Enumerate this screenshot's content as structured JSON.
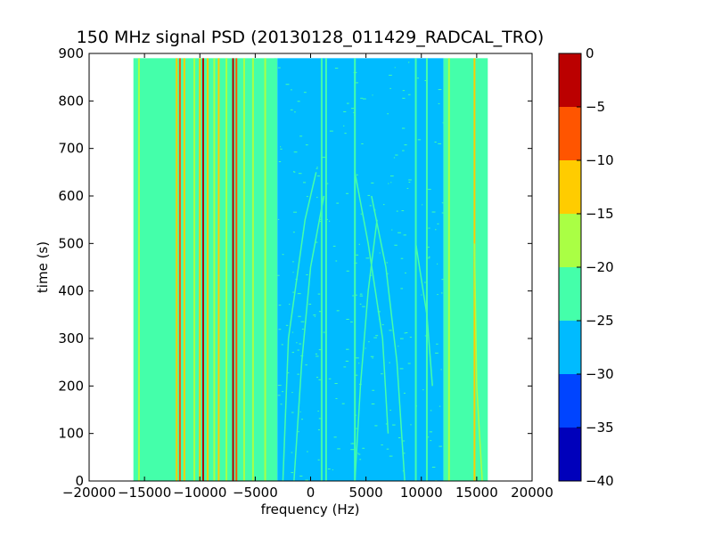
{
  "chart_data": {
    "type": "heatmap",
    "title": "150 MHz signal PSD (20130128_011429_RADCAL_TRO)",
    "xlabel": "frequency (Hz)",
    "ylabel": "time (s)",
    "xlim": [
      -20000,
      20000
    ],
    "ylim": [
      0,
      900
    ],
    "x_ticks": [
      -20000,
      -15000,
      -10000,
      -5000,
      0,
      5000,
      10000,
      15000,
      20000
    ],
    "y_ticks": [
      0,
      100,
      200,
      300,
      400,
      500,
      600,
      700,
      800,
      900
    ],
    "data_extent": {
      "x": [
        -16000,
        16000
      ],
      "y": [
        0,
        890
      ]
    },
    "colorbar": {
      "range": [
        -40,
        0
      ],
      "ticks": [
        0,
        -5,
        -10,
        -15,
        -20,
        -25,
        -30,
        -35,
        -40
      ],
      "levels": [
        {
          "from": -40,
          "to": -35,
          "color": "#0000bb"
        },
        {
          "from": -35,
          "to": -30,
          "color": "#0044ff"
        },
        {
          "from": -30,
          "to": -25,
          "color": "#00bbff"
        },
        {
          "from": -25,
          "to": -20,
          "color": "#44ffaa"
        },
        {
          "from": -20,
          "to": -15,
          "color": "#aaff44"
        },
        {
          "from": -15,
          "to": -10,
          "color": "#ffcc00"
        },
        {
          "from": -10,
          "to": -5,
          "color": "#ff5500"
        },
        {
          "from": -5,
          "to": 0,
          "color": "#bb0000"
        }
      ]
    },
    "regions": [
      {
        "x": [
          -16000,
          -3000
        ],
        "level": -22.5
      },
      {
        "x": [
          -3000,
          12000
        ],
        "level": -27.5
      },
      {
        "x": [
          12000,
          16000
        ],
        "level": -22.5
      }
    ],
    "vertical_lines": [
      {
        "x": -15500,
        "level": -17.5
      },
      {
        "x": -12100,
        "level": -12.5
      },
      {
        "x": -11800,
        "level": -7.5
      },
      {
        "x": -11400,
        "level": -12.5
      },
      {
        "x": -10500,
        "level": -17.5
      },
      {
        "x": -10000,
        "level": -12.5
      },
      {
        "x": -9700,
        "level": -2.5
      },
      {
        "x": -9300,
        "level": -12.5
      },
      {
        "x": -8700,
        "level": -17.5
      },
      {
        "x": -8300,
        "level": -12.5
      },
      {
        "x": -7600,
        "level": -17.5
      },
      {
        "x": -7000,
        "level": -2.5
      },
      {
        "x": -6700,
        "level": -7.5
      },
      {
        "x": -6000,
        "level": -17.5
      },
      {
        "x": -5200,
        "level": -17.5
      },
      {
        "x": -4100,
        "level": -17.5
      },
      {
        "x": -3200,
        "level": -22.5
      },
      {
        "x": 1000,
        "level": -22.5
      },
      {
        "x": 1400,
        "level": -22.5
      },
      {
        "x": 4000,
        "level": -22.5
      },
      {
        "x": 9500,
        "level": -22.5
      },
      {
        "x": 10500,
        "level": -22.5
      },
      {
        "x": 12500,
        "level": -17.5
      },
      {
        "x": 14800,
        "level": -12.5
      }
    ],
    "drifting_lines": [
      {
        "points": [
          [
            -2500,
            0
          ],
          [
            -2000,
            300
          ],
          [
            -500,
            550
          ],
          [
            500,
            650
          ]
        ],
        "level": -22.5
      },
      {
        "points": [
          [
            -1500,
            0
          ],
          [
            -800,
            250
          ],
          [
            0,
            450
          ],
          [
            1200,
            600
          ]
        ],
        "level": -22.5
      },
      {
        "points": [
          [
            4000,
            0
          ],
          [
            4500,
            200
          ],
          [
            5200,
            400
          ],
          [
            6000,
            550
          ]
        ],
        "level": -22.5
      },
      {
        "points": [
          [
            7000,
            100
          ],
          [
            6500,
            300
          ],
          [
            5200,
            500
          ],
          [
            4000,
            650
          ]
        ],
        "level": -22.5
      },
      {
        "points": [
          [
            8500,
            0
          ],
          [
            7800,
            250
          ],
          [
            6800,
            450
          ],
          [
            5500,
            600
          ]
        ],
        "level": -22.5
      },
      {
        "points": [
          [
            11000,
            200
          ],
          [
            10500,
            350
          ],
          [
            9500,
            500
          ]
        ],
        "level": -22.5
      },
      {
        "points": [
          [
            15500,
            0
          ],
          [
            15000,
            200
          ],
          [
            14800,
            500
          ]
        ],
        "level": -17.5
      }
    ]
  }
}
